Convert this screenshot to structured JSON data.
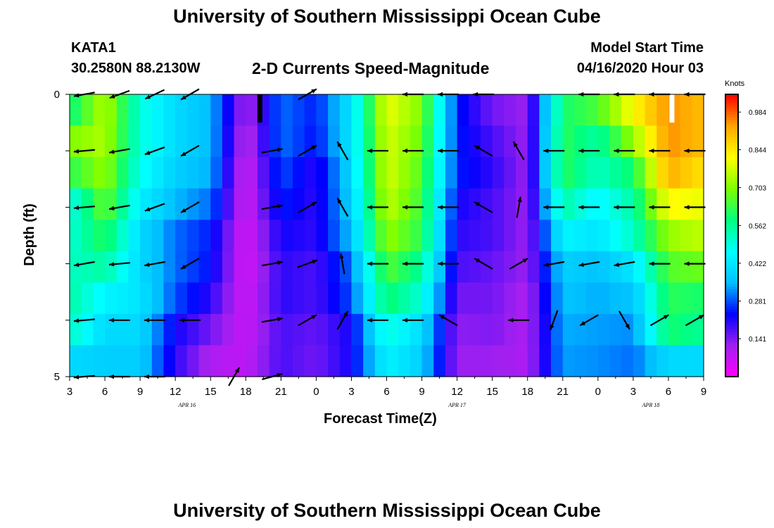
{
  "header": {
    "title": "University of Southern Mississippi Ocean Cube",
    "station": "KATA1",
    "coords": "30.2580N 88.2130W",
    "product": "2-D Currents Speed-Magnitude",
    "model_label": "Model Start Time",
    "model_time": "04/16/2020 Hour 03",
    "footer_title": "University of Southern Mississippi Ocean Cube"
  },
  "colors": {
    "scale": [
      "#ff00ff",
      "#a020f0",
      "#0000ff",
      "#00bfff",
      "#00ffff",
      "#00ff7f",
      "#7fff00",
      "#ffff00",
      "#ffa500",
      "#ff0000"
    ]
  },
  "chart_data": {
    "type": "heatmap",
    "title": "2-D Currents Speed-Magnitude",
    "xlabel": "Forecast Time(Z)",
    "ylabel": "Depth (ft)",
    "colorbar_label": "Knots",
    "colorbar_ticks": [
      "0.984",
      "0.844",
      "0.703",
      "0.562",
      "0.422",
      "0.281",
      "0.141"
    ],
    "colorbar_range": [
      0,
      1.05
    ],
    "x_range_hours": [
      0,
      54
    ],
    "x_tick_labels": [
      "3",
      "6",
      "9",
      "12",
      "15",
      "18",
      "21",
      "0",
      "3",
      "6",
      "9",
      "12",
      "15",
      "18",
      "21",
      "0",
      "3",
      "6",
      "9"
    ],
    "date_labels": [
      {
        "label": "APR 16",
        "hour": 10
      },
      {
        "label": "APR 17",
        "hour": 33
      },
      {
        "label": "APR 18",
        "hour": 49.5
      }
    ],
    "y_ticks": [
      "0",
      "5"
    ],
    "depth_range_ft": [
      0,
      5
    ],
    "depth_levels": 5,
    "profile_hours": [
      0,
      3,
      6,
      9,
      12,
      15,
      18,
      21,
      24,
      27,
      30,
      33,
      36,
      39,
      42,
      45,
      48,
      51,
      54
    ],
    "speed_profiles_knots": [
      [
        0.58,
        0.7,
        0.62,
        0.48,
        0.5,
        0.52,
        0.55,
        0.52,
        0.4
      ],
      [
        0.75,
        0.74,
        0.72,
        0.68,
        0.62,
        0.55,
        0.45,
        0.4,
        0.38
      ],
      [
        0.5,
        0.5,
        0.48,
        0.44,
        0.4,
        0.4,
        0.42,
        0.4,
        0.38
      ],
      [
        0.4,
        0.4,
        0.38,
        0.35,
        0.3,
        0.3,
        0.28,
        0.22,
        0.2
      ],
      [
        0.35,
        0.35,
        0.34,
        0.3,
        0.25,
        0.24,
        0.2,
        0.15,
        0.1
      ],
      [
        0.1,
        0.08,
        0.06,
        0.06,
        0.05,
        0.05,
        0.06,
        0.07,
        0.08
      ],
      [
        0.3,
        0.3,
        0.28,
        0.25,
        0.22,
        0.2,
        0.2,
        0.18,
        0.18
      ],
      [
        0.25,
        0.24,
        0.2,
        0.2,
        0.2,
        0.18,
        0.18,
        0.16,
        0.15
      ],
      [
        0.42,
        0.42,
        0.4,
        0.38,
        0.36,
        0.3,
        0.28,
        0.22,
        0.22
      ],
      [
        0.8,
        0.78,
        0.78,
        0.76,
        0.72,
        0.66,
        0.6,
        0.5,
        0.45
      ],
      [
        0.7,
        0.68,
        0.66,
        0.64,
        0.62,
        0.56,
        0.5,
        0.4,
        0.38
      ],
      [
        0.25,
        0.25,
        0.25,
        0.22,
        0.2,
        0.18,
        0.15,
        0.13,
        0.12
      ],
      [
        0.15,
        0.18,
        0.2,
        0.18,
        0.18,
        0.16,
        0.15,
        0.14,
        0.12
      ],
      [
        0.12,
        0.12,
        0.12,
        0.12,
        0.12,
        0.12,
        0.1,
        0.1,
        0.1
      ],
      [
        0.6,
        0.62,
        0.62,
        0.55,
        0.45,
        0.38,
        0.36,
        0.34,
        0.33
      ],
      [
        0.65,
        0.55,
        0.52,
        0.45,
        0.42,
        0.36,
        0.34,
        0.33,
        0.32
      ],
      [
        0.82,
        0.72,
        0.6,
        0.55,
        0.52,
        0.42,
        0.36,
        0.32,
        0.3
      ],
      [
        0.95,
        0.95,
        0.92,
        0.82,
        0.72,
        0.66,
        0.62,
        0.6,
        0.4
      ],
      [
        0.9,
        0.9,
        0.85,
        0.8,
        0.76,
        0.68,
        0.6,
        0.56,
        0.4
      ]
    ],
    "vector_hours": [
      1.25,
      4.25,
      7.25,
      10.25,
      14,
      17.25,
      20.25,
      23.25,
      26.25,
      29.25,
      32.25,
      35.25,
      38.25,
      41.25,
      44.25,
      47.25,
      50.25,
      53.25
    ],
    "vector_directions_deg": [
      [
        260,
        250,
        245,
        240,
        null,
        null,
        60,
        null,
        null,
        270,
        270,
        270,
        null,
        null,
        270,
        270,
        270,
        270
      ],
      [
        265,
        260,
        250,
        240,
        null,
        80,
        60,
        330,
        270,
        270,
        270,
        300,
        330,
        270,
        270,
        270,
        270,
        270
      ],
      [
        265,
        260,
        250,
        240,
        null,
        80,
        60,
        330,
        270,
        270,
        270,
        300,
        10,
        270,
        270,
        270,
        270,
        270
      ],
      [
        260,
        265,
        260,
        240,
        null,
        80,
        70,
        350,
        270,
        270,
        270,
        300,
        60,
        260,
        260,
        260,
        270,
        270
      ],
      [
        265,
        270,
        270,
        270,
        null,
        80,
        60,
        30,
        270,
        270,
        300,
        null,
        270,
        200,
        240,
        150,
        60,
        60
      ],
      [
        265,
        270,
        270,
        null,
        30,
        75,
        null,
        null,
        null,
        null,
        null,
        null,
        null,
        null,
        null,
        null,
        null,
        null
      ]
    ],
    "missing_segments": [
      {
        "hour": 16.2,
        "depth_ft": [
          0,
          0.5
        ],
        "color": "black"
      },
      {
        "hour": 51.3,
        "depth_ft": [
          0,
          0.5
        ],
        "color": "white"
      }
    ]
  }
}
